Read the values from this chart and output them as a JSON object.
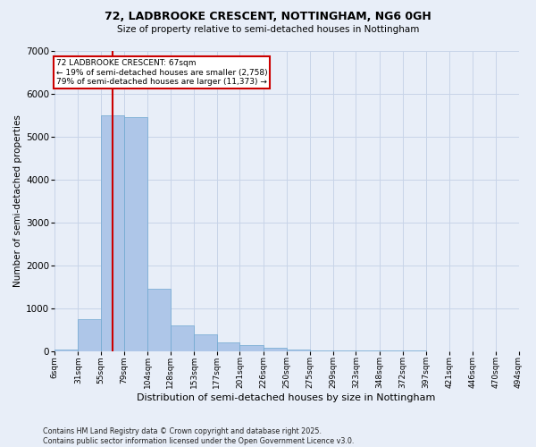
{
  "title_line1": "72, LADBROOKE CRESCENT, NOTTINGHAM, NG6 0GH",
  "title_line2": "Size of property relative to semi-detached houses in Nottingham",
  "xlabel": "Distribution of semi-detached houses by size in Nottingham",
  "ylabel": "Number of semi-detached properties",
  "footer_line1": "Contains HM Land Registry data © Crown copyright and database right 2025.",
  "footer_line2": "Contains public sector information licensed under the Open Government Licence v3.0.",
  "annotation_line1": "72 LADBROOKE CRESCENT: 67sqm",
  "annotation_line2": "← 19% of semi-detached houses are smaller (2,758)",
  "annotation_line3": "79% of semi-detached houses are larger (11,373) →",
  "property_size": 67,
  "bins": [
    6,
    31,
    55,
    79,
    104,
    128,
    153,
    177,
    201,
    226,
    250,
    275,
    299,
    323,
    348,
    372,
    397,
    421,
    446,
    470,
    494
  ],
  "bin_labels": [
    "6sqm",
    "31sqm",
    "55sqm",
    "79sqm",
    "104sqm",
    "128sqm",
    "153sqm",
    "177sqm",
    "201sqm",
    "226sqm",
    "250sqm",
    "275sqm",
    "299sqm",
    "323sqm",
    "348sqm",
    "372sqm",
    "397sqm",
    "421sqm",
    "446sqm",
    "470sqm",
    "494sqm"
  ],
  "values": [
    30,
    750,
    5500,
    5450,
    1450,
    600,
    380,
    200,
    130,
    80,
    40,
    10,
    5,
    2,
    1,
    1,
    0,
    0,
    0,
    0
  ],
  "bar_color": "#aec6e8",
  "bar_edge_color": "#6fa8d0",
  "red_line_color": "#cc0000",
  "grid_color": "#c8d4e8",
  "background_color": "#e8eef8",
  "annotation_box_color": "#ffffff",
  "annotation_box_edge": "#cc0000",
  "ylim": [
    0,
    7000
  ],
  "yticks": [
    0,
    1000,
    2000,
    3000,
    4000,
    5000,
    6000,
    7000
  ]
}
